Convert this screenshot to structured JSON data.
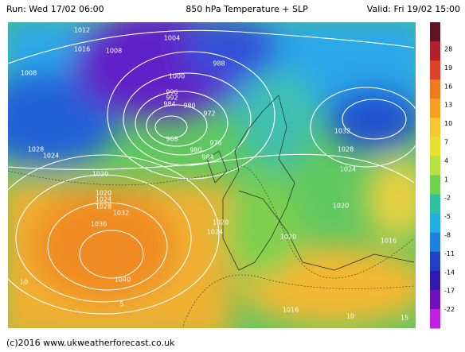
{
  "header": {
    "run": "Run: Wed 17/02 06:00",
    "title": "850 hPa Temperature + SLP",
    "valid": "Valid: Fri 19/02 15:00"
  },
  "colorbar": {
    "labels": [
      28,
      19,
      16,
      13,
      10,
      7,
      4,
      1,
      -2,
      -5,
      -8,
      -11,
      -14,
      -17,
      -22
    ],
    "colors": [
      "#5a1424",
      "#b3202a",
      "#e0402a",
      "#f07a20",
      "#f4a020",
      "#f4c830",
      "#e8e030",
      "#b8e040",
      "#70d050",
      "#30c0a0",
      "#20b0e0",
      "#2080e0",
      "#2040c8",
      "#3018b0",
      "#7010c0",
      "#c020e0"
    ]
  },
  "contour_labels": [
    "1012",
    "1016",
    "1008",
    "1004",
    "1008",
    "988",
    "1000",
    "996",
    "992",
    "984",
    "980",
    "972",
    "968",
    "976",
    "980",
    "984",
    "1028",
    "1024",
    "1020",
    "1032",
    "1028",
    "1024",
    "1020",
    "1024",
    "1028",
    "1032",
    "1036",
    "1040",
    "1020",
    "1024",
    "1020",
    "1020",
    "1016",
    "1016",
    "10",
    "5",
    "10",
    "15"
  ],
  "footer": "(c)2016 www.ukweatherforecast.co.uk"
}
